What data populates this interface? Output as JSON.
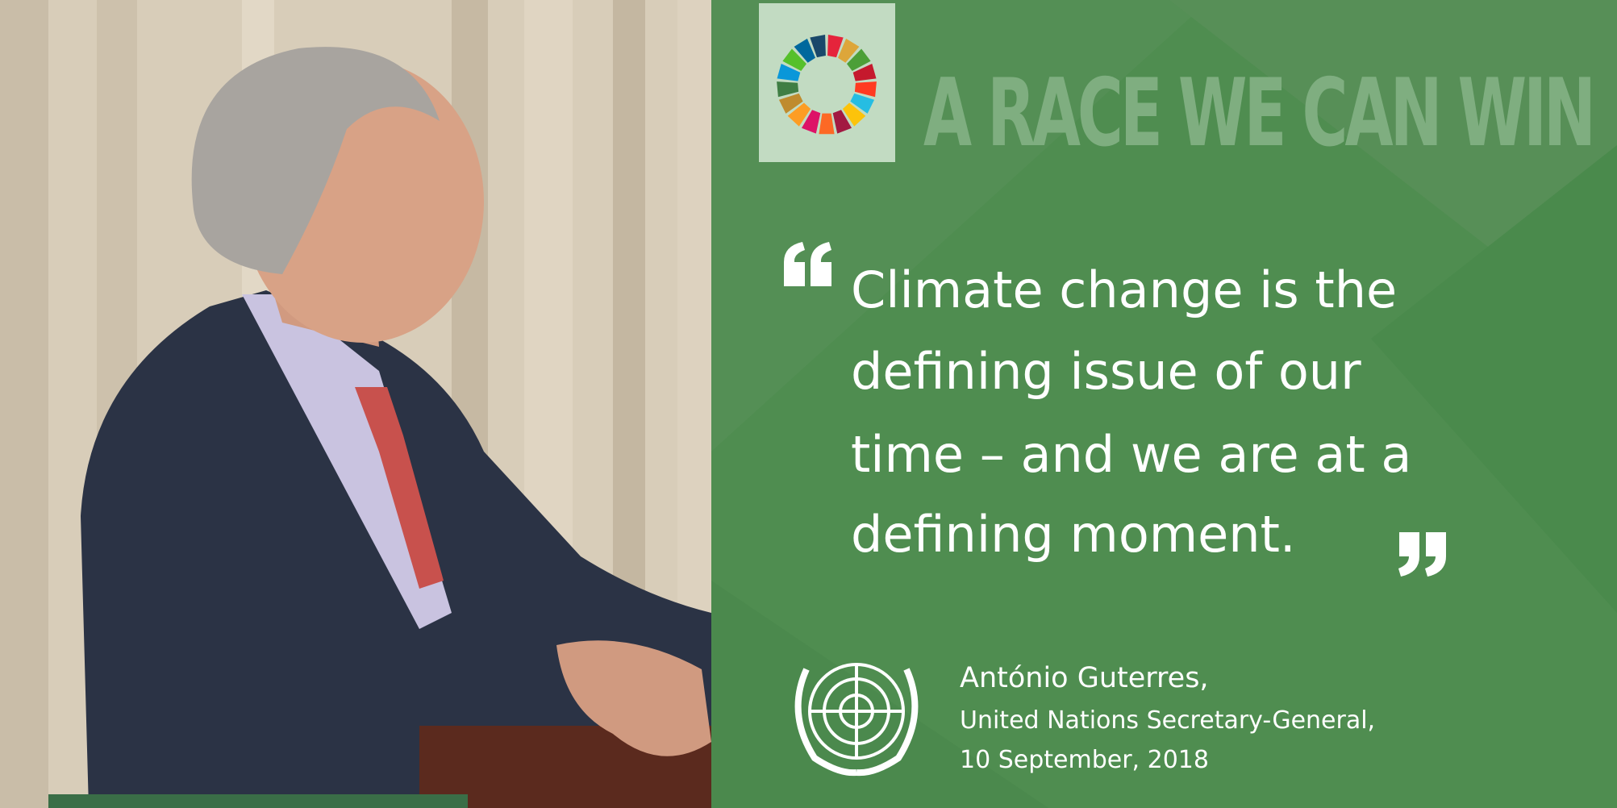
{
  "header": {
    "title": "A RACE WE CAN WIN"
  },
  "quote": {
    "lines": [
      "Climate change is the",
      "defining issue of our",
      "time – and we are at a",
      "defining moment."
    ]
  },
  "attribution": {
    "name": "António Guterres,",
    "role": "United Nations Secretary-General,",
    "date": "10 September, 2018"
  }
}
